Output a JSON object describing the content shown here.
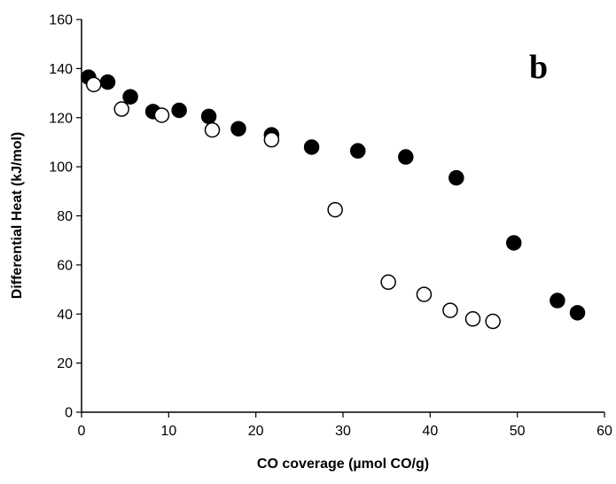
{
  "chart_data": {
    "type": "scatter",
    "title": "",
    "panel_label": "b",
    "xlabel": "CO coverage (µmol CO/g)",
    "ylabel": "Differential Heat (kJ/mol)",
    "xlim": [
      0,
      60
    ],
    "ylim": [
      0,
      160
    ],
    "x_ticks": [
      "0",
      "10",
      "20",
      "30",
      "40",
      "50",
      "60"
    ],
    "y_ticks": [
      "0",
      "20",
      "40",
      "60",
      "80",
      "100",
      "120",
      "140",
      "160"
    ],
    "grid": false,
    "legend": "none",
    "series": [
      {
        "marker": "filled-circle",
        "color": "#000000",
        "x": [
          0.8,
          3.0,
          5.6,
          8.2,
          11.2,
          14.6,
          18.0,
          21.8,
          26.4,
          31.7,
          37.2,
          43.0,
          49.6,
          54.6,
          56.9
        ],
        "y": [
          136.5,
          134.5,
          128.5,
          122.5,
          123.0,
          120.5,
          115.5,
          113.0,
          108.0,
          106.5,
          104.0,
          95.5,
          69.0,
          45.5,
          40.5
        ]
      },
      {
        "marker": "open-circle",
        "color": "#000000",
        "x": [
          1.4,
          4.6,
          9.2,
          15.0,
          21.8,
          29.1,
          35.2,
          39.3,
          42.3,
          44.9,
          47.2
        ],
        "y": [
          133.5,
          123.5,
          121.0,
          115.0,
          111.0,
          82.5,
          53.0,
          48.0,
          41.5,
          38.0,
          37.0
        ]
      }
    ]
  }
}
